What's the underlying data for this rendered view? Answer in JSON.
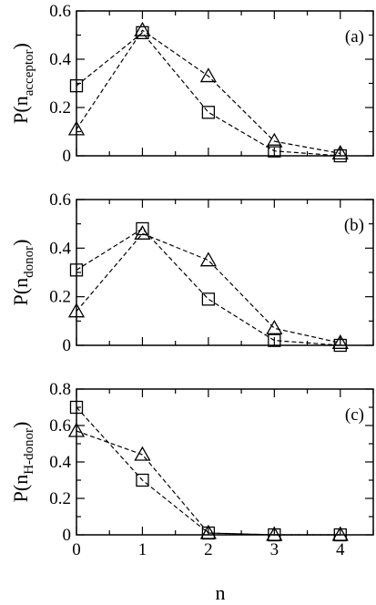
{
  "chart_data": [
    {
      "type": "line",
      "panel_label": "(a)",
      "ylabel": {
        "main": "P(n",
        "sub": "acceptor",
        "close": ")"
      },
      "xlabel": "",
      "x": [
        0,
        1,
        2,
        3,
        4
      ],
      "xlim": [
        0,
        4.5
      ],
      "ylim": [
        0,
        0.6
      ],
      "x_ticks": [
        0,
        1,
        2,
        3,
        4
      ],
      "x_tick_labels": [
        "",
        "",
        "",
        "",
        ""
      ],
      "y_ticks": [
        0,
        0.2,
        0.4,
        0.6
      ],
      "y_tick_labels": [
        "0",
        "0.2",
        "0.4",
        "0.6"
      ],
      "series": [
        {
          "marker": "square",
          "line_style": "dashed",
          "values": [
            0.29,
            0.51,
            0.18,
            0.02,
            0.0
          ]
        },
        {
          "marker": "triangle",
          "line_style": "dashed",
          "values": [
            0.11,
            0.52,
            0.33,
            0.06,
            0.01
          ]
        }
      ]
    },
    {
      "type": "line",
      "panel_label": "(b)",
      "ylabel": {
        "main": "P(n",
        "sub": "donor",
        "close": ")"
      },
      "xlabel": "",
      "x": [
        0,
        1,
        2,
        3,
        4
      ],
      "xlim": [
        0,
        4.5
      ],
      "ylim": [
        0,
        0.6
      ],
      "x_ticks": [
        0,
        1,
        2,
        3,
        4
      ],
      "x_tick_labels": [
        "",
        "",
        "",
        "",
        ""
      ],
      "y_ticks": [
        0,
        0.2,
        0.4,
        0.6
      ],
      "y_tick_labels": [
        "0",
        "0.2",
        "0.4",
        "0.6"
      ],
      "series": [
        {
          "marker": "square",
          "line_style": "dashed",
          "values": [
            0.31,
            0.48,
            0.19,
            0.02,
            0.0
          ]
        },
        {
          "marker": "triangle",
          "line_style": "dashed",
          "values": [
            0.14,
            0.46,
            0.35,
            0.07,
            0.01
          ]
        }
      ]
    },
    {
      "type": "line",
      "panel_label": "(c)",
      "ylabel": {
        "main": "P(n",
        "sub": "H-donor",
        "close": ")"
      },
      "xlabel": "n",
      "x": [
        0,
        1,
        2,
        3,
        4
      ],
      "xlim": [
        0,
        4.5
      ],
      "ylim": [
        0,
        0.8
      ],
      "x_ticks": [
        0,
        1,
        2,
        3,
        4
      ],
      "x_tick_labels": [
        "0",
        "1",
        "2",
        "3",
        "4"
      ],
      "y_ticks": [
        0,
        0.2,
        0.4,
        0.6,
        0.8
      ],
      "y_tick_labels": [
        "0",
        "0.2",
        "0.4",
        "0.6",
        "0.8"
      ],
      "series": [
        {
          "marker": "square",
          "line_style": "dashed",
          "values": [
            0.7,
            0.3,
            0.01,
            0.0,
            0.0
          ]
        },
        {
          "marker": "triangle",
          "line_style": "dashed",
          "values": [
            0.57,
            0.44,
            0.01,
            0.0,
            0.0
          ]
        }
      ]
    }
  ]
}
